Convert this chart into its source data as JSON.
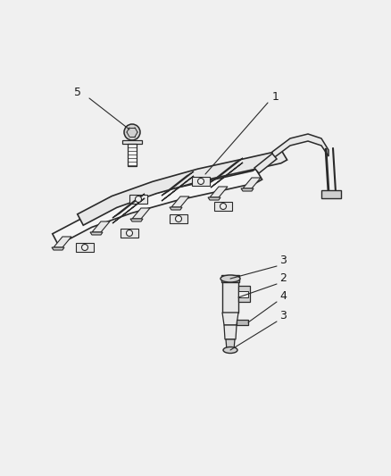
{
  "bg_color": "#f0f0f0",
  "line_color": "#2a2a2a",
  "fill_light": "#e8e8e8",
  "fill_mid": "#d0d0d0",
  "fill_dark": "#b8b8b8",
  "fill_white": "#f5f5f5",
  "fig_width": 4.39,
  "fig_height": 5.33,
  "dpi": 100
}
